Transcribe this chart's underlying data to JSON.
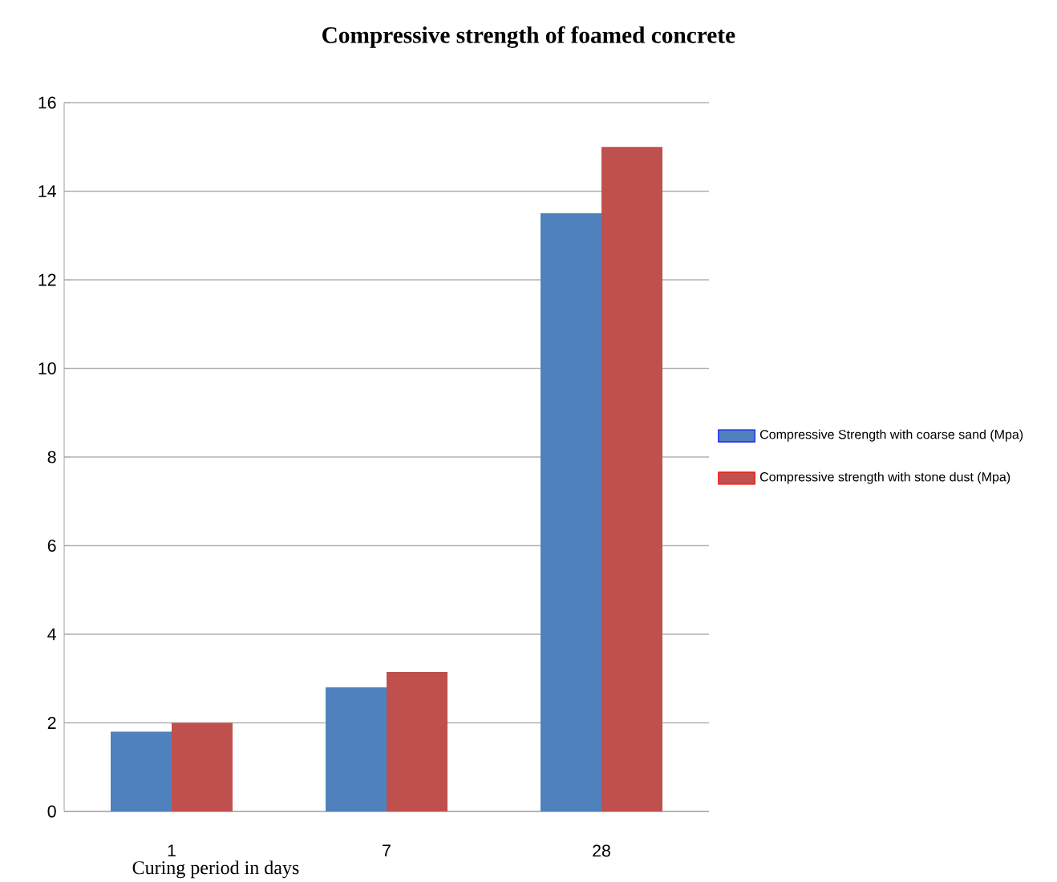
{
  "chart_data": {
    "type": "bar",
    "title": "Compressive strength of foamed concrete",
    "xlabel": "Curing period in days",
    "categories": [
      "1",
      "7",
      "28"
    ],
    "series": [
      {
        "name": "Compressive Strength with coarse sand (Mpa)",
        "color": "#4f81bd",
        "values": [
          1.8,
          2.8,
          13.5
        ]
      },
      {
        "name": "Compressive strength with stone dust (Mpa)",
        "color": "#c0504d",
        "values": [
          2.0,
          3.15,
          15
        ]
      }
    ],
    "ylim": [
      0,
      16
    ],
    "yticks": [
      0,
      2,
      4,
      6,
      8,
      10,
      12,
      14,
      16
    ],
    "grid": "y",
    "legend": "right"
  }
}
